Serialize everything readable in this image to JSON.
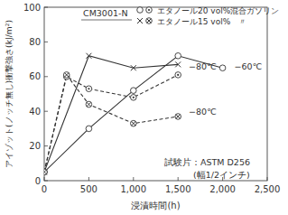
{
  "chart_data": {
    "type": "line",
    "x_label": "浸漬時間(h)",
    "y_label": "アイゾット(ノッチ無し)衝撃強さ(kJ/m²)",
    "legend_title": "CM3001-N",
    "xlim": [
      0,
      2500
    ],
    "xticks": [
      0,
      500,
      {
        "value": 1000,
        "label": "1,000"
      },
      {
        "value": 1500,
        "label": "1,500"
      },
      {
        "value": 2000,
        "label": "2,000"
      },
      {
        "value": 2500,
        "label": "2,500"
      }
    ],
    "ylim": [
      0,
      100
    ],
    "yticks": [
      0,
      20,
      40,
      60,
      80,
      100
    ],
    "grid": false,
    "legend": "top",
    "series": [
      {
        "name": "エタノール20 vol%混合ガソリン",
        "color": "#333333",
        "marker": "circle",
        "line_style": "solid",
        "x": [
          0,
          500,
          1000,
          1500,
          2000
        ],
        "values": [
          5,
          30,
          52,
          72,
          65
        ]
      },
      {
        "name": "エタノール20 vol%混合ガソリン",
        "color": "#333333",
        "marker": "circle-dot",
        "line_style": "dashed",
        "x": [
          0,
          250,
          500,
          1000,
          1500
        ],
        "values": [
          5,
          60,
          53,
          48,
          61
        ]
      },
      {
        "name": "エタノール15 vol%　〃",
        "color": "#333333",
        "marker": "x",
        "line_style": "solid",
        "x": [
          0,
          500,
          1000,
          1500
        ],
        "values": [
          5,
          72,
          65,
          67
        ]
      },
      {
        "name": "エタノール15 vol%　〃",
        "color": "#333333",
        "marker": "circle-x",
        "line_style": "dashed",
        "x": [
          0,
          250,
          500,
          1000,
          1500
        ],
        "values": [
          5,
          61,
          44,
          33,
          37
        ]
      }
    ],
    "annotations": [
      {
        "text": "−80℃",
        "x": 1620,
        "y": 66
      },
      {
        "text": "−60℃",
        "x": 2130,
        "y": 66
      },
      {
        "text": "−80℃",
        "x": 1620,
        "y": 40
      }
    ],
    "notes": [
      "試験片：ASTM D256",
      "(幅1/2インチ)"
    ]
  }
}
